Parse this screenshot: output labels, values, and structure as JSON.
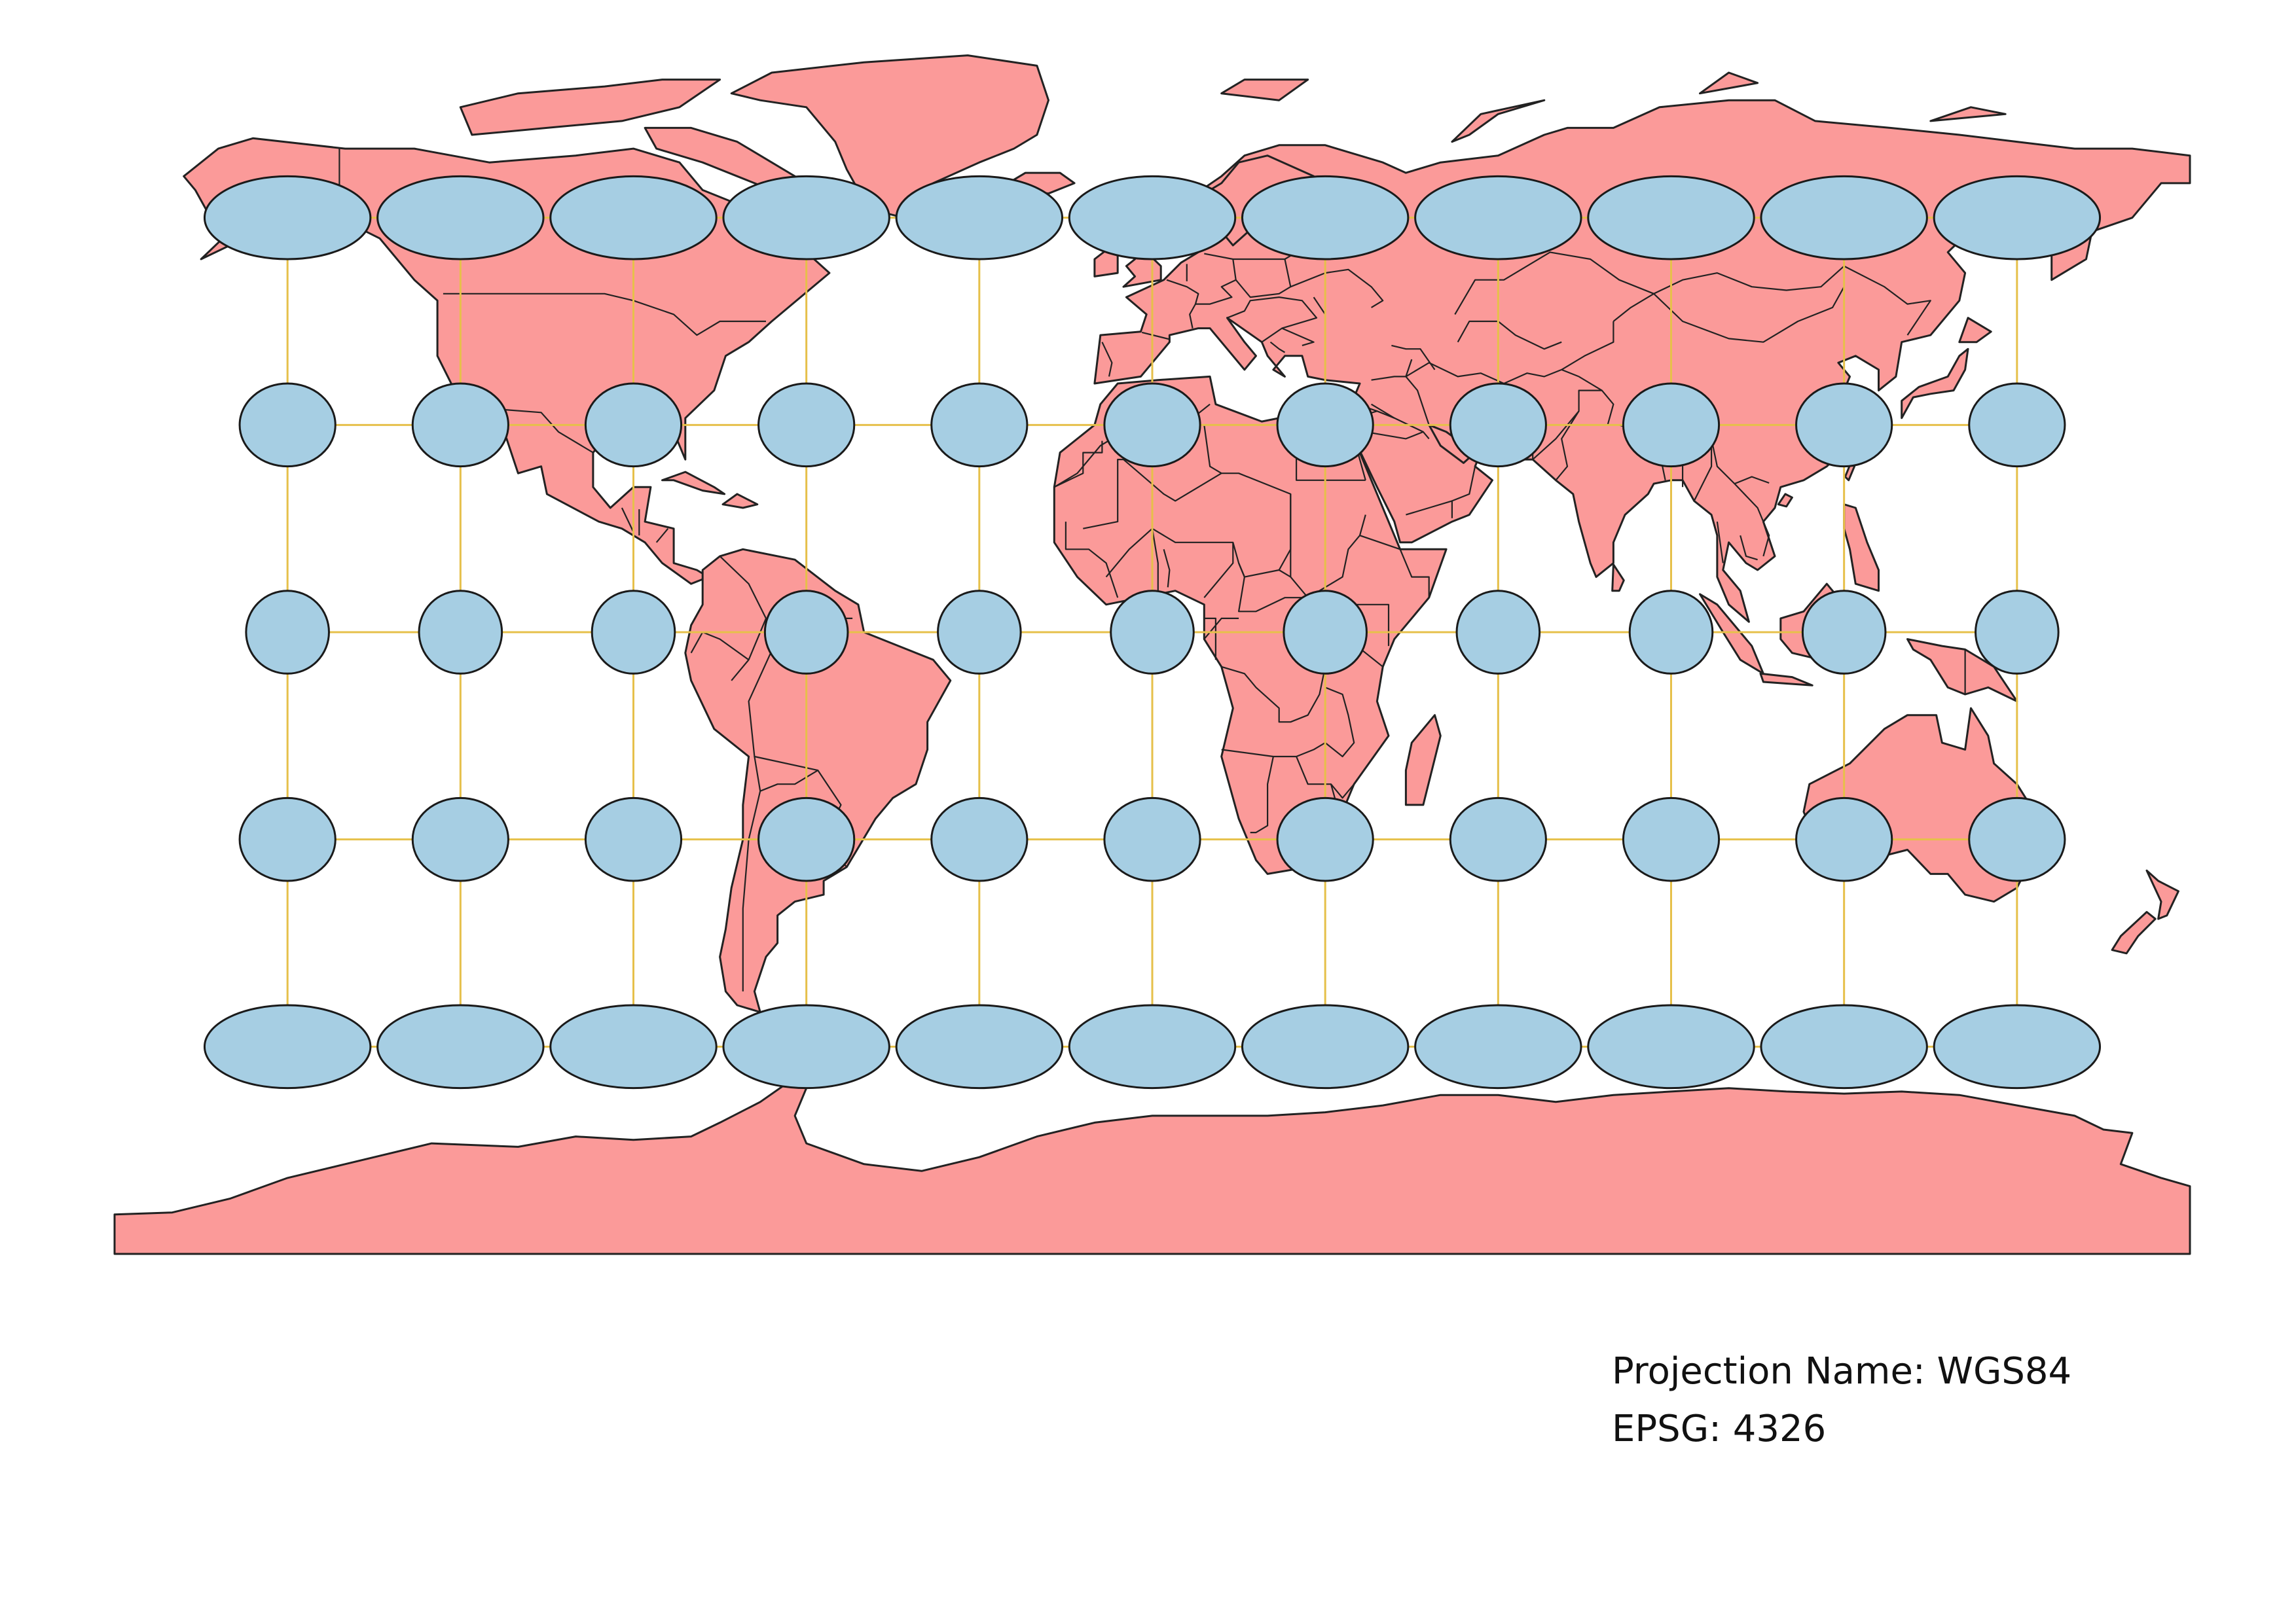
{
  "map": {
    "projection": "Equirectangular (Plate Carrée)",
    "lon_range": [
      -180,
      180
    ],
    "lat_range": [
      -90,
      90
    ],
    "land_color": "#FB9A99",
    "border_color": "#222222",
    "graticule_color": "#E6C04A",
    "ellipse_fill": "#A6CEE3",
    "ellipse_stroke": "#1a1a1a",
    "graticule": {
      "lons": [
        -150,
        -120,
        -90,
        -60,
        -30,
        0,
        30,
        60,
        90,
        120,
        150
      ],
      "lats": [
        60,
        30,
        0,
        -30,
        -60
      ]
    },
    "tissot_indicatrix": {
      "centers_lon": [
        -150,
        -120,
        -90,
        -60,
        -30,
        0,
        30,
        60,
        90,
        120,
        150
      ],
      "centers_lat": [
        60,
        30,
        0,
        -30,
        -60
      ],
      "radius_deg": 6
    }
  },
  "legend": {
    "projection_label": "Projection Name:",
    "projection_value": "WGS84",
    "epsg_label": "EPSG:",
    "epsg_value": "4326"
  }
}
